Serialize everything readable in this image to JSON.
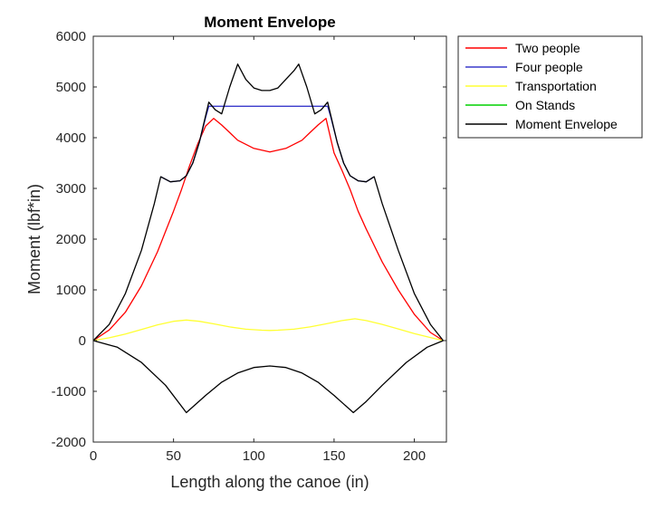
{
  "chart_data": {
    "type": "line",
    "title": "Moment Envelope",
    "xlabel": "Length along the canoe (in)",
    "ylabel": "Moment (lbf*in)",
    "xlim": [
      0,
      220
    ],
    "ylim": [
      -2000,
      6000
    ],
    "xticks": [
      "0",
      "50",
      "100",
      "150",
      "200"
    ],
    "xtick_values": [
      0,
      50,
      100,
      150,
      200
    ],
    "yticks": [
      "-2000",
      "-1000",
      "0",
      "1000",
      "2000",
      "3000",
      "4000",
      "5000",
      "6000"
    ],
    "ytick_values": [
      -2000,
      -1000,
      0,
      1000,
      2000,
      3000,
      4000,
      5000,
      6000
    ],
    "grid": false,
    "legend_position": "outside-top-right",
    "series": [
      {
        "name": "Two people",
        "color": "#ff0000",
        "x": [
          0,
          10,
          20,
          30,
          40,
          50,
          55,
          60,
          65,
          70,
          75,
          80,
          85,
          90,
          100,
          110,
          120,
          130,
          135,
          140,
          145,
          150,
          155,
          160,
          165,
          170,
          180,
          190,
          200,
          210,
          218
        ],
        "y": [
          0,
          210,
          560,
          1080,
          1750,
          2550,
          2980,
          3450,
          3870,
          4230,
          4380,
          4250,
          4100,
          3950,
          3790,
          3720,
          3790,
          3950,
          4100,
          4250,
          4380,
          3700,
          3350,
          2980,
          2550,
          2200,
          1550,
          1000,
          520,
          160,
          0
        ]
      },
      {
        "name": "Four people",
        "color": "#3a3acc",
        "x": [
          42,
          48,
          54,
          58,
          62,
          66,
          70,
          72,
          146,
          148,
          152,
          156,
          160,
          165,
          170,
          175
        ],
        "y": [
          3230,
          3130,
          3150,
          3250,
          3500,
          3900,
          4400,
          4620,
          4620,
          4400,
          3900,
          3500,
          3250,
          3150,
          3130,
          3230
        ]
      },
      {
        "name": "Transportation",
        "color": "#ffff33",
        "x": [
          0,
          10,
          20,
          30,
          40,
          50,
          58,
          66,
          75,
          85,
          95,
          105,
          110,
          115,
          125,
          135,
          145,
          155,
          163,
          170,
          180,
          190,
          200,
          210,
          218
        ],
        "y": [
          0,
          55,
          130,
          220,
          310,
          380,
          405,
          380,
          330,
          270,
          225,
          205,
          200,
          205,
          225,
          270,
          330,
          395,
          430,
          395,
          320,
          230,
          140,
          60,
          0
        ]
      },
      {
        "name": "On Stands",
        "color": "#00d000",
        "x": [],
        "y": []
      },
      {
        "name": "Moment Envelope",
        "color": "#000000",
        "x": [
          0,
          10,
          20,
          30,
          38,
          42,
          48,
          54,
          58,
          62,
          66,
          72,
          76,
          80,
          85,
          90,
          95,
          100,
          105,
          110,
          115,
          120,
          125,
          128,
          133,
          138,
          142,
          146,
          152,
          156,
          160,
          165,
          170,
          175,
          180,
          190,
          200,
          210,
          218,
          208,
          195,
          180,
          170,
          162,
          150,
          140,
          130,
          120,
          110,
          100,
          90,
          80,
          70,
          58,
          45,
          30,
          15,
          0
        ],
        "y": [
          0,
          320,
          930,
          1780,
          2700,
          3230,
          3130,
          3150,
          3250,
          3500,
          3900,
          4700,
          4550,
          4470,
          5000,
          5450,
          5150,
          4980,
          4930,
          4930,
          4980,
          5150,
          5320,
          5450,
          5000,
          4470,
          4550,
          4700,
          3900,
          3500,
          3250,
          3150,
          3130,
          3230,
          2700,
          1780,
          930,
          320,
          0,
          -130,
          -430,
          -880,
          -1200,
          -1420,
          -1080,
          -820,
          -640,
          -530,
          -500,
          -530,
          -640,
          -820,
          -1080,
          -1420,
          -880,
          -430,
          -130,
          0
        ]
      }
    ]
  }
}
